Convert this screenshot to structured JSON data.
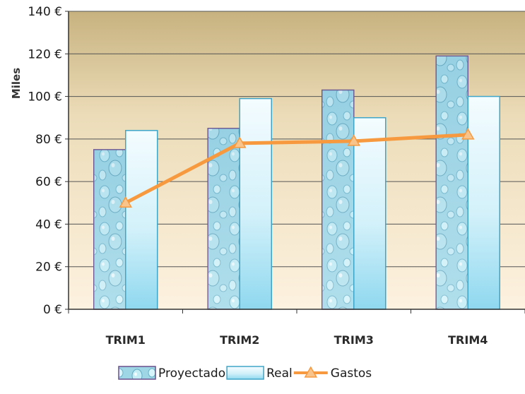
{
  "chart_data": {
    "type": "bar",
    "title": "",
    "xlabel": "",
    "ylabel": "Miles",
    "ylim": [
      0,
      140
    ],
    "ytick_step": 20,
    "ytick_suffix": " €",
    "categories": [
      "TRIM1",
      "TRIM2",
      "TRIM3",
      "TRIM4"
    ],
    "series": [
      {
        "name": "Proyectado",
        "type": "bar",
        "values": [
          75,
          85,
          103,
          119
        ]
      },
      {
        "name": "Real",
        "type": "bar",
        "values": [
          84,
          99,
          90,
          100
        ]
      },
      {
        "name": "Gastos",
        "type": "line",
        "values": [
          50,
          78,
          79,
          82
        ]
      }
    ],
    "grid": true,
    "legend_position": "bottom",
    "colors": {
      "plot_bg_top": "#c7b27f",
      "plot_bg_bottom": "#fdf2e0",
      "gridline": "#555555",
      "proyectado_fill": "#8fcfe0",
      "proyectado_border": "#6a4f8c",
      "real_fill_top": "#f4fcff",
      "real_fill_bottom": "#8fd8ef",
      "real_border": "#3ea5c8",
      "gastos_line": "#f79a3f",
      "gastos_marker": "#f9c48c"
    }
  }
}
